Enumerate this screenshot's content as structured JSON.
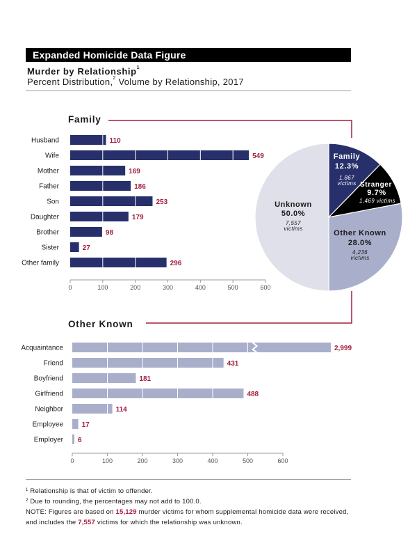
{
  "header": {
    "banner": "Expanded Homicide Data Figure",
    "title": "Murder by Relationship",
    "title_note": "1",
    "subtitle_a": "Percent Distribution,",
    "subtitle_note": "2",
    "subtitle_b": " Volume by Relationship, 2017"
  },
  "colors": {
    "family": "#27306b",
    "other_known": "#a9aecb",
    "stranger": "#000000",
    "unknown": "#dfe0ea",
    "accent": "#a31f3d"
  },
  "chart_data": [
    {
      "type": "bar",
      "orientation": "horizontal",
      "title": "Family",
      "categories": [
        "Husband",
        "Wife",
        "Mother",
        "Father",
        "Son",
        "Daughter",
        "Brother",
        "Sister",
        "Other family"
      ],
      "values": [
        110,
        549,
        169,
        186,
        253,
        179,
        98,
        27,
        296
      ],
      "value_labels": [
        "110",
        "549",
        "169",
        "186",
        "253",
        "179",
        "98",
        "27",
        "296"
      ],
      "xlim": [
        0,
        600
      ],
      "ticks": [
        "0",
        "100",
        "200",
        "300",
        "400",
        "500",
        "600"
      ],
      "grid": false
    },
    {
      "type": "pie",
      "slices": [
        {
          "name": "Family",
          "percent": 12.3,
          "percent_label": "12.3%",
          "count_label": "1,867",
          "unit": "victims"
        },
        {
          "name": "Stranger",
          "percent": 9.7,
          "percent_label": "9.7%",
          "count_label": "1,469 victims"
        },
        {
          "name": "Other Known",
          "percent": 28.0,
          "percent_label": "28.0%",
          "count_label": "4,236",
          "unit": "victims"
        },
        {
          "name": "Unknown",
          "percent": 50.0,
          "percent_label": "50.0%",
          "count_label": "7,557",
          "unit": "victims"
        }
      ]
    },
    {
      "type": "bar",
      "orientation": "horizontal",
      "title": "Other Known",
      "categories": [
        "Acquaintance",
        "Friend",
        "Boyfriend",
        "Girlfriend",
        "Neighbor",
        "Employee",
        "Employer"
      ],
      "values": [
        2999,
        431,
        181,
        488,
        114,
        17,
        6
      ],
      "value_labels": [
        "2,999",
        "431",
        "181",
        "488",
        "114",
        "17",
        "6"
      ],
      "axis_break_on": "Acquaintance",
      "xlim": [
        0,
        600
      ],
      "ticks": [
        "0",
        "100",
        "200",
        "300",
        "400",
        "500",
        "600"
      ],
      "grid": false
    }
  ],
  "notes": {
    "n1_mark": "1",
    "n1": " Relationship is that of victim to offender.",
    "n2_mark": "2",
    "n2": " Due to rounding, the percentages may not add to 100.0.",
    "n3_a": "NOTE:  Figures are based on ",
    "n3_b": "15,129",
    "n3_c": " murder victims for whom supplemental homicide data were received,",
    "n4_a": "and includes the ",
    "n4_b": "7,557",
    "n4_c": " victims for which the relationship was unknown."
  }
}
